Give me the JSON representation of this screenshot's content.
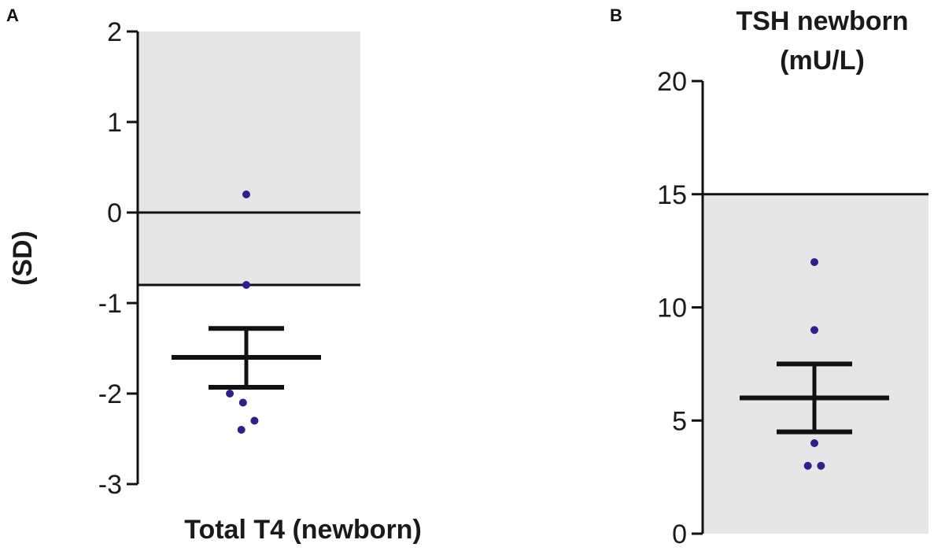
{
  "chart_data": [
    {
      "type": "scatter",
      "panel_label": "A",
      "title": "",
      "xlabel": "Total T4 (newborn)",
      "ylabel": "(SD)",
      "ylim": [
        -3,
        2
      ],
      "yticks": [
        "2",
        "1",
        "0",
        "-1",
        "-2",
        "-3"
      ],
      "ytick_values": [
        2,
        1,
        0,
        -1,
        -2,
        -3
      ],
      "shaded_range": [
        -0.8,
        2
      ],
      "reference_lines": [
        0,
        -0.8
      ],
      "points": [
        {
          "x": 0.5,
          "y": 0.2
        },
        {
          "x": 0.5,
          "y": -0.8
        },
        {
          "x": 0.4,
          "y": -2.0
        },
        {
          "x": 0.48,
          "y": -2.1
        },
        {
          "x": 0.55,
          "y": -2.3
        },
        {
          "x": 0.47,
          "y": -2.4
        }
      ],
      "summary": {
        "mean": -1.6,
        "error_upper": -1.28,
        "error_lower": -1.93
      },
      "colors": {
        "points": "#2e1f8f",
        "shade": "#e6e6e6",
        "lines": "#111111"
      }
    },
    {
      "type": "scatter",
      "panel_label": "B",
      "title_lines": [
        "TSH newborn",
        "(mU/L)"
      ],
      "xlabel": "",
      "ylabel": "",
      "ylim": [
        0,
        20
      ],
      "yticks": [
        "20",
        "15",
        "10",
        "5",
        "0"
      ],
      "ytick_values": [
        20,
        15,
        10,
        5,
        0
      ],
      "shaded_range": [
        0,
        15
      ],
      "reference_lines": [
        15
      ],
      "points": [
        {
          "x": 0.5,
          "y": 12
        },
        {
          "x": 0.5,
          "y": 9
        },
        {
          "x": 0.5,
          "y": 4
        },
        {
          "x": 0.46,
          "y": 3
        },
        {
          "x": 0.54,
          "y": 3
        }
      ],
      "summary": {
        "mean": 6,
        "error_upper": 7.5,
        "error_lower": 4.5
      },
      "colors": {
        "points": "#2e1f8f",
        "shade": "#e6e6e6",
        "lines": "#111111"
      }
    }
  ]
}
